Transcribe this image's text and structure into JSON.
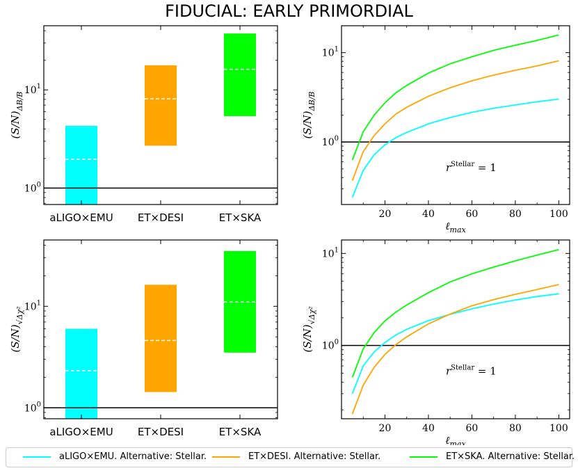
{
  "title": "FIDUCIAL: EARLY PRIMORDIAL",
  "colors": {
    "aLIGO": "#00ffff",
    "ET_DESI": "#ffa500",
    "ET_SKA": "#00ff00",
    "median": "#ffffff",
    "ref_line": "#000000"
  },
  "legend": [
    {
      "label": "aLIGO×EMU. Alternative: Stellar.",
      "color": "#00ffff"
    },
    {
      "label": "ET×DESI. Alternative: Stellar.",
      "color": "#ffa500"
    },
    {
      "label": "ET×SKA. Alternative: Stellar.",
      "color": "#00ff00"
    }
  ],
  "chart_data": [
    {
      "type": "bar",
      "yscale": "log",
      "ylabel": "(S/N)_{ΔB/B}",
      "categories": [
        "aLIGO×EMU",
        "ET×DESI",
        "ET×SKA"
      ],
      "ranges": [
        [
          0.68,
          4.3
        ],
        [
          2.7,
          17.8
        ],
        [
          5.4,
          37.5
        ]
      ],
      "medians": [
        1.97,
        8.1,
        16.2
      ],
      "reference_line": 1,
      "ylim": [
        0.68,
        45
      ],
      "yticks": [
        "10^0",
        "10^1"
      ]
    },
    {
      "type": "line",
      "yscale": "log",
      "ylabel": "(S/N)_{ΔB/B}",
      "xlabel": "ℓ_max",
      "annotation": "r^Stellar = 1",
      "xlim": [
        0,
        105
      ],
      "ylim": [
        0.2,
        20
      ],
      "xticks": [
        20,
        40,
        60,
        80,
        100
      ],
      "yticks": [
        "10^0",
        "10^1"
      ],
      "reference_line": 1,
      "x": [
        5,
        10,
        15,
        20,
        25,
        30,
        40,
        50,
        60,
        70,
        80,
        90,
        100
      ],
      "series": [
        {
          "name": "aLIGO×EMU",
          "values": [
            0.24,
            0.48,
            0.72,
            0.93,
            1.12,
            1.28,
            1.6,
            1.88,
            2.15,
            2.39,
            2.6,
            2.82,
            3.02
          ]
        },
        {
          "name": "ET×DESI",
          "values": [
            0.37,
            0.78,
            1.18,
            1.6,
            2.05,
            2.45,
            3.25,
            4.05,
            4.85,
            5.6,
            6.35,
            7.1,
            8.1
          ]
        },
        {
          "name": "ET×SKA",
          "values": [
            0.63,
            1.3,
            2.0,
            2.75,
            3.55,
            4.3,
            5.9,
            7.5,
            9.0,
            10.6,
            12.1,
            13.7,
            15.8
          ]
        }
      ]
    },
    {
      "type": "bar",
      "yscale": "log",
      "ylabel": "(S/N)_{√Δχ²}",
      "categories": [
        "aLIGO×EMU",
        "ET×DESI",
        "ET×SKA"
      ],
      "ranges": [
        [
          0.78,
          6.0
        ],
        [
          1.43,
          16.3
        ],
        [
          3.5,
          35.0
        ]
      ],
      "medians": [
        2.32,
        4.6,
        11.0
      ],
      "reference_line": 1,
      "ylim": [
        0.78,
        45
      ],
      "yticks": [
        "10^0",
        "10^1"
      ]
    },
    {
      "type": "line",
      "yscale": "log",
      "ylabel": "(S/N)_{√Δχ²}",
      "xlabel": "ℓ_max",
      "annotation": "r^Stellar = 1",
      "xlim": [
        0,
        105
      ],
      "ylim": [
        0.16,
        14
      ],
      "xticks": [
        20,
        40,
        60,
        80,
        100
      ],
      "yticks": [
        "10^0",
        "10^1"
      ],
      "reference_line": 1,
      "x": [
        5,
        10,
        15,
        20,
        25,
        30,
        40,
        50,
        60,
        70,
        80,
        90,
        100
      ],
      "series": [
        {
          "name": "aLIGO×EMU",
          "values": [
            0.3,
            0.6,
            0.85,
            1.08,
            1.3,
            1.5,
            1.86,
            2.18,
            2.5,
            2.82,
            3.12,
            3.4,
            3.65
          ]
        },
        {
          "name": "ET×DESI",
          "values": [
            0.18,
            0.37,
            0.58,
            0.8,
            1.02,
            1.24,
            1.72,
            2.2,
            2.7,
            3.15,
            3.6,
            4.05,
            4.6
          ]
        },
        {
          "name": "ET×SKA",
          "values": [
            0.45,
            0.92,
            1.38,
            1.85,
            2.3,
            2.75,
            3.75,
            4.9,
            6.0,
            7.1,
            8.3,
            9.6,
            11.0
          ]
        }
      ]
    }
  ]
}
